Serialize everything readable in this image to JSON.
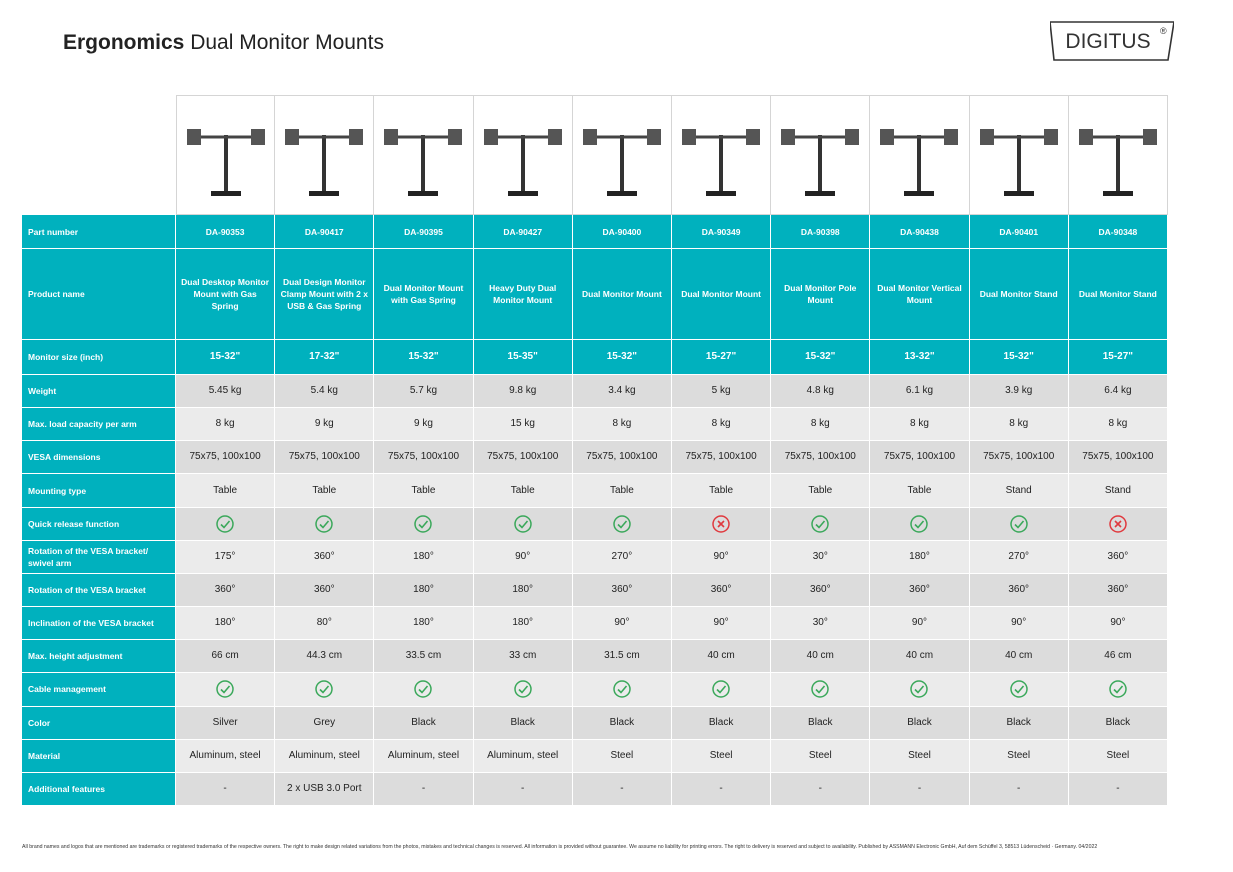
{
  "header": {
    "title_bold": "Ergonomics",
    "title_rest": "Dual Monitor Mounts",
    "logo": "DIGITUS",
    "logo_mark": "®"
  },
  "table": {
    "rows": [
      {
        "label": "Part number",
        "cells": [
          "DA-90353",
          "DA-90417",
          "DA-90395",
          "DA-90427",
          "DA-90400",
          "DA-90349",
          "DA-90398",
          "DA-90438",
          "DA-90401",
          "DA-90348"
        ]
      },
      {
        "label": "Product name",
        "cells": [
          "Dual Desktop Monitor Mount with Gas Spring",
          "Dual Design Monitor Clamp Mount with 2 x USB & Gas Spring",
          "Dual Monitor Mount with Gas Spring",
          "Heavy Duty Dual Monitor Mount",
          "Dual Monitor Mount",
          "Dual Monitor Mount",
          "Dual Monitor Pole Mount",
          "Dual Monitor Vertical Mount",
          "Dual Monitor Stand",
          "Dual Monitor Stand"
        ]
      },
      {
        "label": "Monitor size (inch)",
        "cells": [
          "15-32\"",
          "17-32\"",
          "15-32\"",
          "15-35\"",
          "15-32\"",
          "15-27\"",
          "15-32\"",
          "13-32\"",
          "15-32\"",
          "15-27\""
        ]
      },
      {
        "label": "Weight",
        "cells": [
          "5.45 kg",
          "5.4 kg",
          "5.7 kg",
          "9.8 kg",
          "3.4 kg",
          "5 kg",
          "4.8 kg",
          "6.1 kg",
          "3.9 kg",
          "6.4 kg"
        ]
      },
      {
        "label": "Max. load capacity per arm",
        "cells": [
          "8 kg",
          "9 kg",
          "9 kg",
          "15 kg",
          "8 kg",
          "8 kg",
          "8 kg",
          "8 kg",
          "8 kg",
          "8 kg"
        ]
      },
      {
        "label": "VESA dimensions",
        "cells": [
          "75x75, 100x100",
          "75x75, 100x100",
          "75x75, 100x100",
          "75x75, 100x100",
          "75x75, 100x100",
          "75x75, 100x100",
          "75x75, 100x100",
          "75x75, 100x100",
          "75x75, 100x100",
          "75x75, 100x100"
        ]
      },
      {
        "label": "Mounting type",
        "cells": [
          "Table",
          "Table",
          "Table",
          "Table",
          "Table",
          "Table",
          "Table",
          "Table",
          "Stand",
          "Stand"
        ]
      },
      {
        "label": "Quick release function",
        "cells": [
          true,
          true,
          true,
          true,
          true,
          false,
          true,
          true,
          true,
          false
        ]
      },
      {
        "label": "Rotation of the VESA bracket/ swivel arm",
        "cells": [
          "175°",
          "360°",
          "180°",
          "90°",
          "270°",
          "90°",
          "30°",
          "180°",
          "270°",
          "360°"
        ]
      },
      {
        "label": "Rotation of the VESA bracket",
        "cells": [
          "360°",
          "360°",
          "180°",
          "180°",
          "360°",
          "360°",
          "360°",
          "360°",
          "360°",
          "360°"
        ]
      },
      {
        "label": "Inclination of the VESA bracket",
        "cells": [
          "180°",
          "80°",
          "180°",
          "180°",
          "90°",
          "90°",
          "30°",
          "90°",
          "90°",
          "90°"
        ]
      },
      {
        "label": "Max. height adjustment",
        "cells": [
          "66 cm",
          "44.3 cm",
          "33.5 cm",
          "33 cm",
          "31.5 cm",
          "40 cm",
          "40 cm",
          "40 cm",
          "40 cm",
          "46 cm"
        ]
      },
      {
        "label": "Cable management",
        "cells": [
          true,
          true,
          true,
          true,
          true,
          true,
          true,
          true,
          true,
          true
        ]
      },
      {
        "label": "Color",
        "cells": [
          "Silver",
          "Grey",
          "Black",
          "Black",
          "Black",
          "Black",
          "Black",
          "Black",
          "Black",
          "Black"
        ]
      },
      {
        "label": "Material",
        "cells": [
          "Aluminum, steel",
          "Aluminum, steel",
          "Aluminum, steel",
          "Aluminum, steel",
          "Steel",
          "Steel",
          "Steel",
          "Steel",
          "Steel",
          "Steel"
        ]
      },
      {
        "label": "Additional features",
        "cells": [
          "-",
          "2 x USB 3.0 Port",
          "-",
          "-",
          "-",
          "-",
          "-",
          "-",
          "-",
          "-"
        ]
      }
    ]
  },
  "footer": "All brand names and logos that are mentioned are trademarks or registered trademarks of the respective owners. The right to make design related variations from the photos, mistakes and technical changes is reserved. All information is provided without guarantee. We assume no liability for printing errors. The right to delivery is reserved and subject to availability. Published by ASSMANN Electronic GmbH, Auf dem Schüffel 3, 58513 Lüdenscheid · Germany. 04/2022"
}
